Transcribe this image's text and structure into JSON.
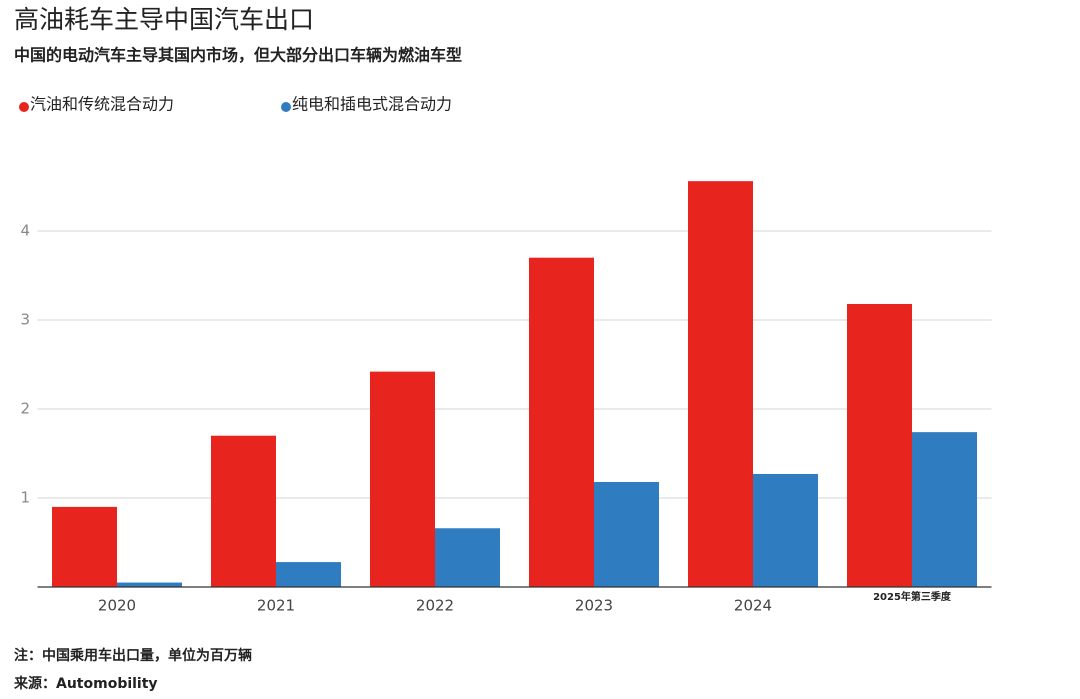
{
  "chart_data": {
    "type": "bar",
    "title": "高油耗车主导中国汽车出口",
    "subtitle": "中国的电动汽车主导其国内市场，但大部分出口车辆为燃油车型",
    "note": "注：中国乘用车出口量，单位为百万辆",
    "source": "来源：Automobility",
    "categories": [
      "2020",
      "2021",
      "2022",
      "2023",
      "2024",
      "2025年第三季度"
    ],
    "series": [
      {
        "name": "汽油和传统混合动力",
        "color": "#e8241e",
        "values": [
          0.9,
          1.7,
          2.42,
          3.7,
          4.56,
          3.18
        ]
      },
      {
        "name": "纯电和插电式混合动力",
        "color": "#2f7dc0",
        "values": [
          0.05,
          0.28,
          0.66,
          1.18,
          1.27,
          1.74
        ]
      }
    ],
    "ylim": [
      0,
      5
    ],
    "yticks": [
      1,
      2,
      3,
      4
    ],
    "grid": true
  }
}
